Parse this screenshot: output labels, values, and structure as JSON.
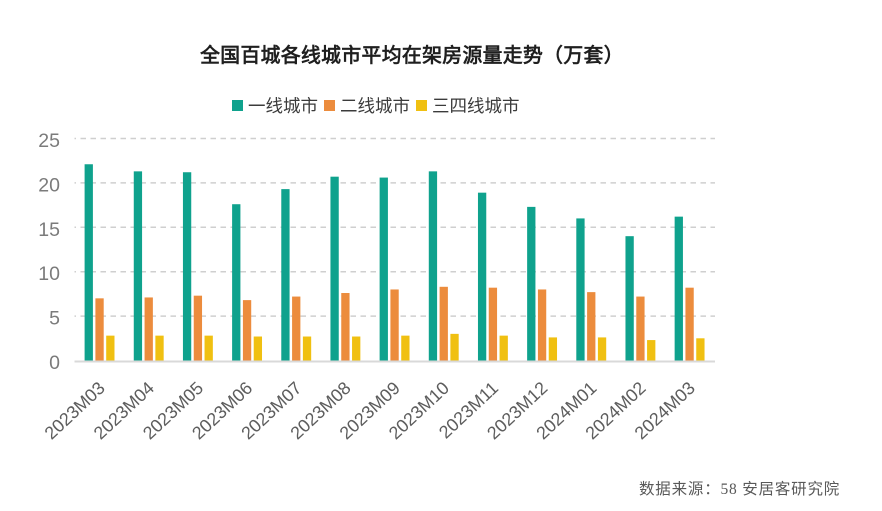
{
  "chart": {
    "title": "全国百城各线城市平均在架房源量走势（万套）",
    "source_note": "数据来源：58 安居客研究院"
  },
  "chart_data": {
    "type": "bar",
    "title": "全国百城各线城市平均在架房源量走势（万套）",
    "categories": [
      "2023M03",
      "2023M04",
      "2023M05",
      "2023M06",
      "2023M07",
      "2023M08",
      "2023M09",
      "2023M10",
      "2023M11",
      "2023M12",
      "2024M01",
      "2024M02",
      "2024M03"
    ],
    "series": [
      {
        "name": "一线城市",
        "color": "#0fa28d",
        "values": [
          22.1,
          21.3,
          21.2,
          17.6,
          19.3,
          20.7,
          20.6,
          21.3,
          18.9,
          17.3,
          16.0,
          14.0,
          16.2
        ]
      },
      {
        "name": "二线城市",
        "color": "#ec8c3d",
        "values": [
          7.0,
          7.1,
          7.3,
          6.8,
          7.2,
          7.6,
          8.0,
          8.3,
          8.2,
          8.0,
          7.7,
          7.2,
          8.2
        ]
      },
      {
        "name": "三四线城市",
        "color": "#f0c011",
        "values": [
          2.8,
          2.8,
          2.8,
          2.7,
          2.7,
          2.7,
          2.8,
          3.0,
          2.8,
          2.6,
          2.6,
          2.3,
          2.5
        ]
      }
    ],
    "xlabel": "",
    "ylabel": "",
    "ylim": [
      0,
      25
    ],
    "yticks": [
      0,
      5,
      10,
      15,
      20,
      25
    ],
    "grid": "horizontal-dashed",
    "legend_position": "top-center",
    "axis_colors": {
      "grid": "#cfcfcf",
      "axis_line": "#d9d9d9",
      "ytick_label": "#7b7b7b",
      "xtick_label": "#5d5d5d"
    }
  }
}
